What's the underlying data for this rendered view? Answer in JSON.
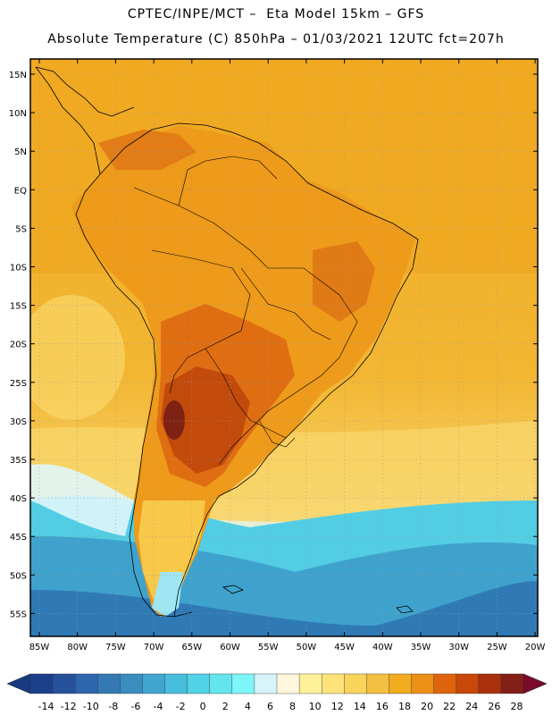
{
  "header": {
    "line1": "CPTEC/INPE/MCT –  Eta Model 15km – GFS",
    "line2": "Absolute Temperature (C) 850hPa – 01/03/2021 12UTC fct=207h"
  },
  "map": {
    "lat_labels": [
      "15N",
      "10N",
      "5N",
      "EQ",
      "5S",
      "10S",
      "15S",
      "20S",
      "25S",
      "30S",
      "35S",
      "40S",
      "45S",
      "50S",
      "55S"
    ],
    "lon_labels": [
      "85W",
      "80W",
      "75W",
      "70W",
      "65W",
      "60W",
      "55W",
      "50W",
      "45W",
      "40W",
      "35W",
      "30W",
      "25W",
      "20W"
    ]
  },
  "colorbar": {
    "labels": [
      "-14",
      "-12",
      "-10",
      "-8",
      "-6",
      "-4",
      "-2",
      "0",
      "2",
      "4",
      "6",
      "8",
      "10",
      "12",
      "14",
      "16",
      "18",
      "20",
      "22",
      "24",
      "26",
      "28"
    ],
    "colors": [
      "#1c3f8c",
      "#25519c",
      "#2e66ad",
      "#3479b4",
      "#3a8dbf",
      "#41a6cf",
      "#48bedd",
      "#52d2e6",
      "#63e5ee",
      "#7ef5fa",
      "#d6f4fa",
      "#fff6dc",
      "#fff09a",
      "#fde37a",
      "#f9d35c",
      "#f4c042",
      "#f1ac1f",
      "#eb8f16",
      "#de650c",
      "#c94709",
      "#a8300a",
      "#822018"
    ],
    "end_colors": {
      "low": "#183a82",
      "high": "#7a0a2c"
    }
  },
  "colors": {
    "ocean_warm": "#f0a81b",
    "ocean_mid": "#f4c040",
    "land_hot": "#e07418",
    "land_very_hot": "#c44a0a",
    "cold_ocean": "#3f9fcc"
  }
}
